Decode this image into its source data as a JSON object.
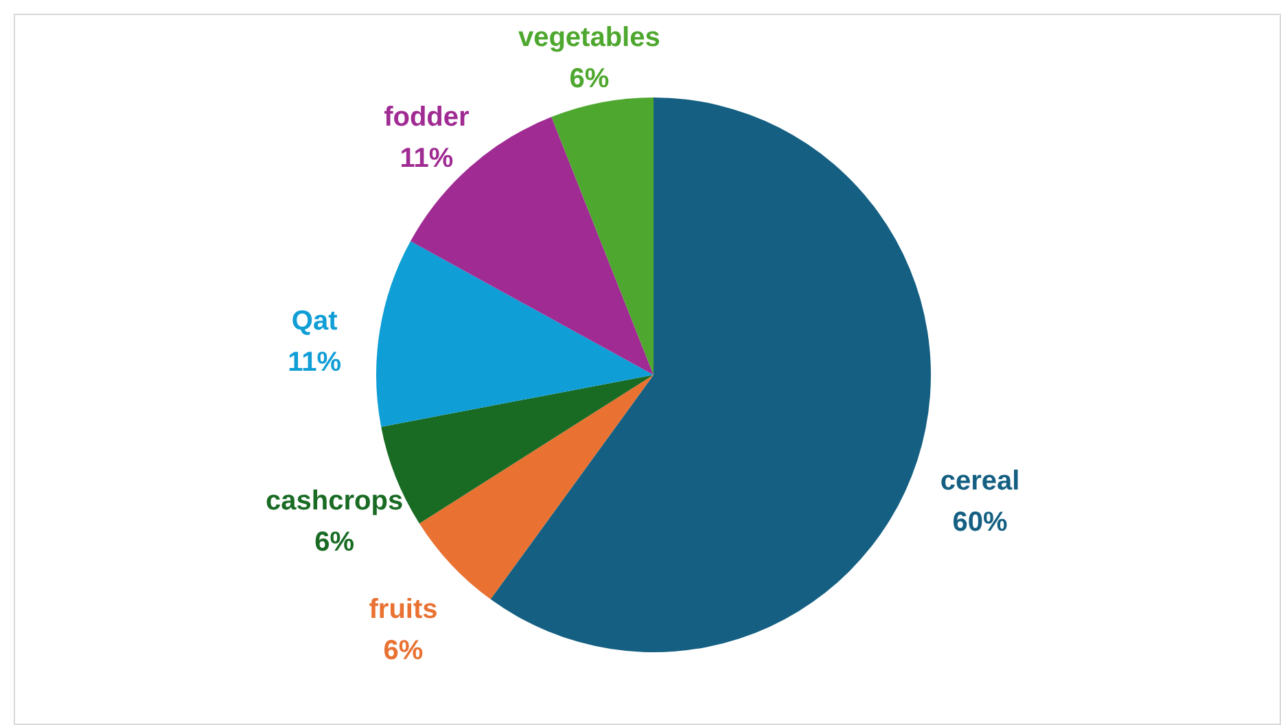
{
  "chart_data": {
    "type": "pie",
    "categories": [
      "cereal",
      "fruits",
      "cashcrops",
      "Qat",
      "fodder",
      "vegetables"
    ],
    "values": [
      60,
      6,
      6,
      11,
      11,
      6
    ],
    "value_labels": [
      "60%",
      "6%",
      "6%",
      "11%",
      "11%",
      "6%"
    ],
    "colors": [
      "#156082",
      "#e97132",
      "#196b24",
      "#0f9ed5",
      "#a02b93",
      "#4ea72e"
    ]
  }
}
